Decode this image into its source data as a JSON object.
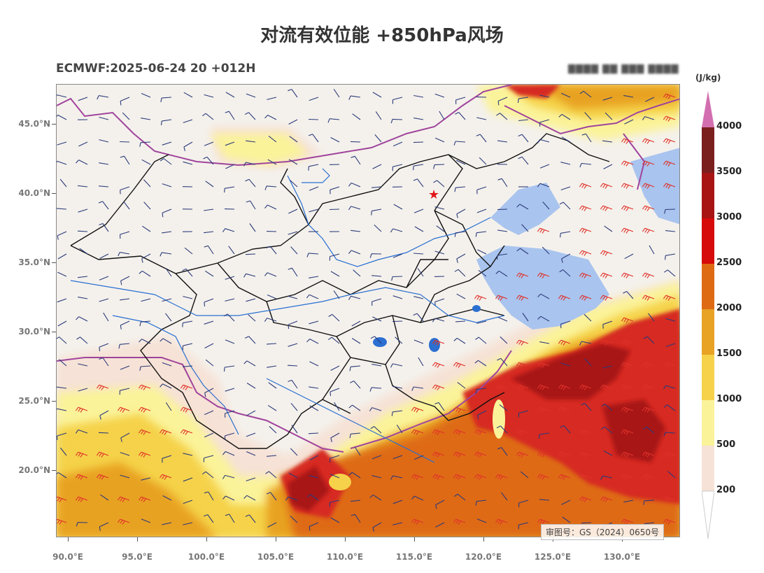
{
  "title": "对流有效位能 +850hPa风场",
  "subtitle": "ECMWF:2025-06-24 20 +012H",
  "blurred_text": "▇▇▇▇ ▇▇ ▇▇▇ ▇▇▇▇",
  "map": {
    "approval_number": "审图号：GS（2024）0650号",
    "lat_labels": [
      "45.0°N",
      "40.0°N",
      "35.0°N",
      "30.0°N",
      "25.0°N",
      "20.0°N"
    ],
    "lon_labels": [
      "90.0°E",
      "95.0°E",
      "100.0°E",
      "105.0°E",
      "110.0°E",
      "115.0°E",
      "120.0°E",
      "125.0°E",
      "130.0°E"
    ],
    "marker": "capital-star",
    "colors": {
      "land": "#f4f1ec",
      "sea_low": "#a9c4ee",
      "boundary_country": "#a0449c",
      "boundary_province": "#111111",
      "river": "#2a6fd1",
      "barb_normal": "#2b3a7a",
      "barb_strong": "#e0322a"
    }
  },
  "colorbar": {
    "unit": "(J/kg)",
    "labels": [
      "4000",
      "3500",
      "3000",
      "2500",
      "2000",
      "1500",
      "1000",
      "500",
      "200"
    ],
    "colors": [
      "#d36fb0",
      "#7b1e1e",
      "#a81414",
      "#d60a0a",
      "#de6a14",
      "#e8a224",
      "#f5d24a",
      "#fbf39a",
      "#f6e2d6"
    ]
  }
}
